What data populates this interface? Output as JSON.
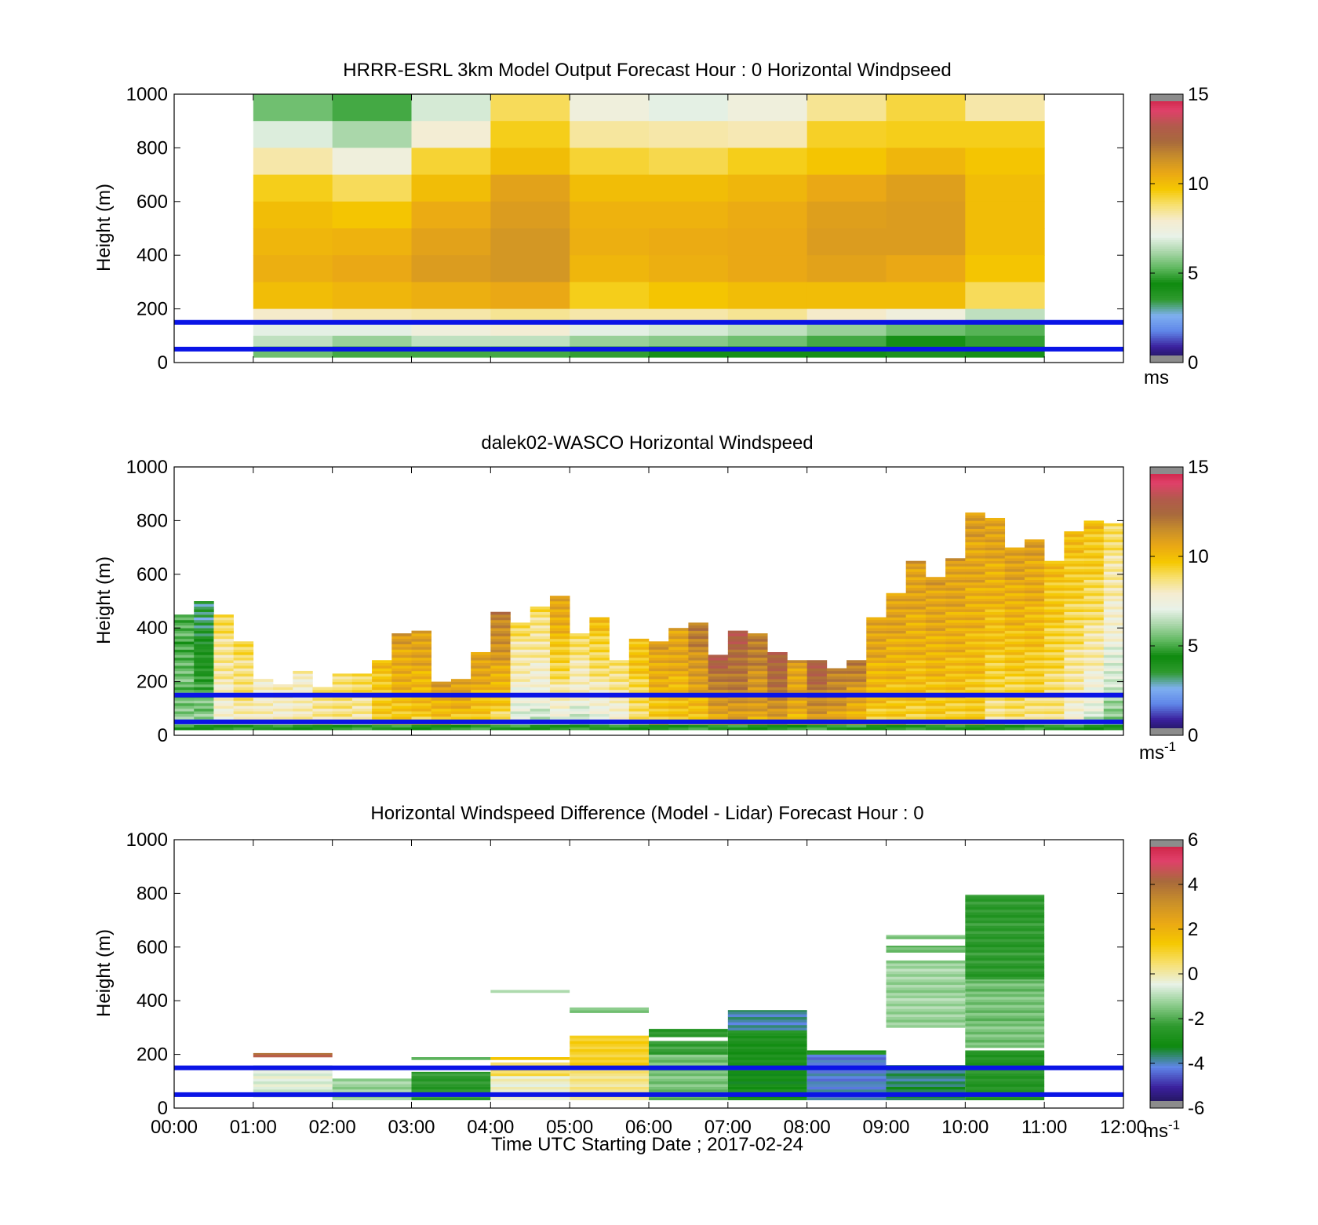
{
  "x_axis": {
    "label": "Time UTC  Starting Date ; 2017-02-24",
    "ticks": [
      "00:00",
      "01:00",
      "02:00",
      "03:00",
      "04:00",
      "05:00",
      "06:00",
      "07:00",
      "08:00",
      "09:00",
      "10:00",
      "11:00",
      "12:00"
    ]
  },
  "colors": {
    "frame": "#000000",
    "band_line": "#0a14e6",
    "speed_cmap": [
      "#1a1446",
      "#3a1f9c",
      "#5f86e8",
      "#7fb0f0",
      "#2f9a2f",
      "#0e8a0e",
      "#5fb85f",
      "#a8d6a8",
      "#e8f2e8",
      "#f5ecd0",
      "#f7e070",
      "#f5c800",
      "#eaa815",
      "#c98f2a",
      "#a86a3c",
      "#b25a4c",
      "#e0406a",
      "#c81a3a"
    ],
    "diff_cmap": [
      "#1a1446",
      "#3a1f9c",
      "#5f86e8",
      "#0e8a0e",
      "#2f9a2f",
      "#8ccc8c",
      "#e8f2e8",
      "#f7e070",
      "#f5c800",
      "#eaa815",
      "#c98f2a",
      "#a86a3c",
      "#e0406a",
      "#c81a3a"
    ]
  },
  "chart_data": [
    {
      "type": "heatmap",
      "title": "HRRR-ESRL 3km Model Output   Forecast Hour : 0 Horizontal Windpseed",
      "ylabel": "Height (m)",
      "xlim": [
        0,
        12
      ],
      "ylim": [
        0,
        1000
      ],
      "yticks": [
        0,
        200,
        400,
        600,
        800,
        1000
      ],
      "reference_lines_m": [
        50,
        150
      ],
      "colorbar": {
        "min": 0,
        "max": 15,
        "ticks": [
          0,
          5,
          10,
          15
        ],
        "unit": "ms"
      },
      "x_hours": [
        1,
        2,
        3,
        4,
        5,
        6,
        7,
        8,
        9,
        10
      ],
      "z_tops_m": [
        1000,
        900,
        800,
        700,
        600,
        500,
        400,
        300,
        200,
        150,
        100,
        60
      ],
      "z_bottoms_m": [
        900,
        800,
        700,
        600,
        500,
        400,
        300,
        200,
        150,
        100,
        60,
        20
      ],
      "values": [
        [
          5.5,
          5.0,
          6.8,
          9.0,
          7.5,
          7.0,
          7.5,
          8.5,
          9.2,
          8.3
        ],
        [
          6.9,
          6.2,
          7.8,
          9.5,
          8.4,
          8.3,
          8.2,
          9.4,
          9.5,
          9.5
        ],
        [
          8.3,
          7.5,
          9.3,
          10.0,
          9.3,
          9.1,
          9.5,
          9.8,
          10.2,
          9.8
        ],
        [
          9.5,
          9.0,
          10.0,
          10.8,
          10.0,
          10.0,
          10.2,
          10.6,
          10.9,
          10.0
        ],
        [
          10.0,
          9.8,
          10.5,
          11.0,
          10.3,
          10.3,
          10.5,
          10.9,
          11.0,
          10.0
        ],
        [
          10.2,
          10.3,
          10.8,
          11.2,
          10.4,
          10.5,
          10.6,
          11.0,
          11.0,
          10.0
        ],
        [
          10.4,
          10.6,
          11.0,
          11.2,
          10.2,
          10.4,
          10.6,
          10.8,
          10.6,
          9.8
        ],
        [
          10.0,
          10.2,
          10.4,
          10.6,
          9.5,
          9.8,
          10.0,
          10.0,
          10.0,
          9.0
        ],
        [
          8.0,
          8.2,
          8.3,
          8.5,
          8.3,
          8.3,
          8.5,
          8.0,
          7.5,
          6.5
        ],
        [
          7.0,
          7.0,
          7.5,
          7.8,
          7.0,
          6.8,
          6.5,
          6.0,
          5.5,
          5.2
        ],
        [
          6.5,
          6.0,
          6.5,
          6.5,
          6.0,
          5.8,
          5.5,
          5.0,
          4.5,
          4.8
        ],
        [
          5.5,
          5.0,
          5.0,
          5.0,
          4.8,
          4.5,
          4.5,
          4.2,
          4.0,
          4.5
        ]
      ]
    },
    {
      "type": "heatmap",
      "title": "dalek02-WASCO  Horizontal Windspeed",
      "ylabel": "Height (m)",
      "xlim": [
        0,
        12
      ],
      "ylim": [
        0,
        1000
      ],
      "yticks": [
        0,
        200,
        400,
        600,
        800,
        1000
      ],
      "reference_lines_m": [
        50,
        150
      ],
      "colorbar": {
        "min": 0,
        "max": 15,
        "ticks": [
          0,
          5,
          10,
          15
        ],
        "unit": "ms-1"
      },
      "bin_hours": 0.25,
      "x_start_hours": [
        0.0,
        0.25,
        0.5,
        0.75,
        1.0,
        1.25,
        1.5,
        1.75,
        2.0,
        2.25,
        2.5,
        2.75,
        3.0,
        3.25,
        3.5,
        3.75,
        4.0,
        4.25,
        4.5,
        4.75,
        5.0,
        5.25,
        5.5,
        5.75,
        6.0,
        6.25,
        6.5,
        6.75,
        7.0,
        7.25,
        7.5,
        7.75,
        8.0,
        8.25,
        8.5,
        8.75,
        9.0,
        9.25,
        9.5,
        9.75,
        10.0,
        10.25,
        10.5,
        10.75,
        11.0,
        11.25,
        11.5,
        11.75
      ],
      "column_top_m": [
        450,
        500,
        450,
        350,
        210,
        190,
        240,
        180,
        230,
        230,
        280,
        380,
        390,
        200,
        210,
        310,
        460,
        420,
        480,
        520,
        380,
        440,
        280,
        360,
        350,
        400,
        420,
        300,
        390,
        380,
        310,
        280,
        280,
        250,
        280,
        440,
        530,
        650,
        590,
        660,
        830,
        810,
        700,
        730,
        650,
        760,
        800,
        790
      ],
      "surface_speed": [
        6,
        7,
        7,
        8,
        8,
        8,
        8,
        8,
        8,
        8,
        9,
        9,
        9,
        9,
        9,
        9,
        8,
        6,
        6,
        6,
        6,
        6,
        7,
        8,
        9,
        9,
        9,
        9,
        10,
        10,
        10,
        10,
        10,
        10,
        9,
        9,
        9,
        9,
        9,
        9,
        9,
        8,
        8,
        8,
        8,
        7,
        6,
        5
      ],
      "upper_speed": [
        5,
        3,
        9,
        9,
        8,
        8,
        8,
        9,
        9,
        9,
        10,
        11,
        11,
        11,
        11,
        11,
        12,
        9,
        9,
        11,
        9,
        10,
        9,
        10,
        11,
        11,
        12,
        13,
        13,
        12,
        13,
        11,
        13,
        12,
        12,
        11,
        11,
        11,
        11,
        11,
        11,
        11,
        11,
        11,
        10,
        10,
        10,
        9
      ]
    },
    {
      "type": "heatmap",
      "title": "Horizontal Windspeed Difference (Model - Lidar) Forecast Hour : 0",
      "ylabel": "Height (m)",
      "xlabel": "Time UTC  Starting Date ; 2017-02-24",
      "xlim": [
        0,
        12
      ],
      "ylim": [
        0,
        1000
      ],
      "yticks": [
        0,
        200,
        400,
        600,
        800,
        1000
      ],
      "reference_lines_m": [
        50,
        150
      ],
      "colorbar": {
        "min": -6,
        "max": 6,
        "ticks": [
          -6,
          -4,
          -2,
          0,
          2,
          4,
          6
        ],
        "unit": "ms-1"
      },
      "columns": [
        {
          "x0": 1,
          "x1": 2,
          "segments": [
            [
              40,
              160,
              -0.5
            ],
            [
              190,
              205,
              4.2
            ]
          ]
        },
        {
          "x0": 2,
          "x1": 3,
          "segments": [
            [
              30,
              110,
              -1.3
            ]
          ]
        },
        {
          "x0": 3,
          "x1": 4,
          "segments": [
            [
              30,
              135,
              -2.4
            ],
            [
              180,
              190,
              -1.5
            ]
          ]
        },
        {
          "x0": 4,
          "x1": 5,
          "segments": [
            [
              30,
              120,
              -0.3
            ],
            [
              120,
              170,
              0.8
            ],
            [
              180,
              190,
              1.2
            ],
            [
              430,
              440,
              -1.4
            ]
          ]
        },
        {
          "x0": 5,
          "x1": 6,
          "segments": [
            [
              30,
              150,
              0.3
            ],
            [
              150,
              270,
              1.1
            ],
            [
              355,
              375,
              -1.3
            ]
          ]
        },
        {
          "x0": 6,
          "x1": 7,
          "segments": [
            [
              30,
              200,
              -1.6
            ],
            [
              200,
              250,
              -2.3
            ],
            [
              265,
              295,
              -2.6
            ]
          ]
        },
        {
          "x0": 7,
          "x1": 8,
          "segments": [
            [
              30,
              180,
              -3.0
            ],
            [
              180,
              290,
              -2.8
            ],
            [
              290,
              365,
              -3.8
            ]
          ]
        },
        {
          "x0": 8,
          "x1": 9,
          "segments": [
            [
              30,
              90,
              -4.0
            ],
            [
              90,
              200,
              -4.2
            ],
            [
              200,
              215,
              -2.8
            ]
          ]
        },
        {
          "x0": 9,
          "x1": 10,
          "segments": [
            [
              30,
              160,
              -3.6
            ],
            [
              300,
              550,
              -1.2
            ],
            [
              580,
              605,
              -1.8
            ],
            [
              630,
              645,
              -1.5
            ]
          ]
        },
        {
          "x0": 10,
          "x1": 11,
          "segments": [
            [
              30,
              215,
              -2.6
            ],
            [
              225,
              480,
              -1.6
            ],
            [
              480,
              795,
              -2.4
            ]
          ]
        }
      ]
    }
  ]
}
